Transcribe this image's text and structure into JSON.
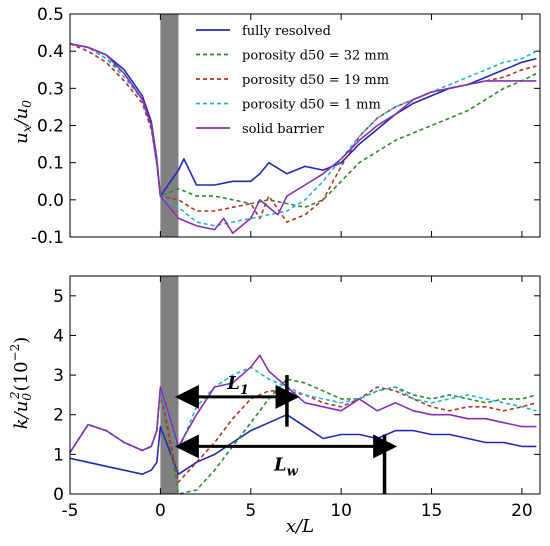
{
  "chart_data": [
    {
      "type": "line",
      "ylabel": "u_x/u_0",
      "xlim": [
        -5,
        21
      ],
      "ylim": [
        -0.1,
        0.5
      ],
      "xticks": [
        -5,
        0,
        5,
        10,
        15,
        20
      ],
      "yticks": [
        "-0.1",
        "0.0",
        "0.1",
        "0.2",
        "0.3",
        "0.4",
        "0.5"
      ],
      "barrier_span": [
        0,
        1
      ],
      "legend_position": "top-center",
      "series": [
        {
          "name": "fully resolved",
          "color": "#1f2ab8",
          "style": "solid",
          "x": [
            -5,
            -4,
            -3,
            -2,
            -1,
            -0.5,
            -0.2,
            0,
            1,
            1.3,
            2,
            3,
            4,
            5,
            5.5,
            6,
            7,
            8,
            9,
            10,
            11,
            12,
            13,
            14,
            15,
            16,
            17,
            18,
            19,
            20,
            20.8
          ],
          "y": [
            0.42,
            0.41,
            0.39,
            0.35,
            0.28,
            0.21,
            0.11,
            0.01,
            0.08,
            0.11,
            0.04,
            0.04,
            0.05,
            0.05,
            0.07,
            0.1,
            0.07,
            0.09,
            0.08,
            0.1,
            0.15,
            0.19,
            0.23,
            0.26,
            0.28,
            0.3,
            0.31,
            0.33,
            0.35,
            0.37,
            0.38
          ]
        },
        {
          "name": "porosity d_50 = 32 mm",
          "color": "#2e8b2e",
          "style": "dashed",
          "x": [
            -5,
            -4,
            -3,
            -2,
            -1,
            -0.5,
            -0.2,
            0,
            1,
            2,
            3,
            4,
            5,
            6,
            7,
            8,
            9,
            10,
            11,
            12,
            13,
            14,
            15,
            16,
            17,
            18,
            19,
            20,
            20.8
          ],
          "y": [
            0.42,
            0.41,
            0.38,
            0.34,
            0.27,
            0.2,
            0.1,
            0.01,
            0.03,
            0.01,
            0.01,
            0.0,
            -0.01,
            0.0,
            -0.01,
            -0.02,
            0.0,
            0.05,
            0.1,
            0.13,
            0.16,
            0.18,
            0.2,
            0.22,
            0.24,
            0.27,
            0.3,
            0.32,
            0.34
          ]
        },
        {
          "name": "porosity d_50 = 19 mm",
          "color": "#b8341e",
          "style": "dashed",
          "x": [
            -5,
            -4,
            -3,
            -2,
            -1,
            -0.5,
            -0.2,
            0,
            1,
            2,
            3,
            4,
            5,
            5.5,
            6,
            7,
            8,
            9,
            10,
            11,
            12,
            13,
            14,
            15,
            16,
            17,
            18,
            19,
            20,
            20.8
          ],
          "y": [
            0.42,
            0.4,
            0.37,
            0.32,
            0.26,
            0.19,
            0.1,
            0.01,
            0.0,
            -0.03,
            -0.03,
            -0.02,
            -0.01,
            -0.05,
            0.01,
            -0.06,
            -0.04,
            0.0,
            0.09,
            0.17,
            0.22,
            0.25,
            0.27,
            0.29,
            0.3,
            0.31,
            0.32,
            0.33,
            0.35,
            0.36
          ]
        },
        {
          "name": "porosity d_50 = 1 mm",
          "color": "#22b6d4",
          "style": "dashed",
          "x": [
            -5,
            -4,
            -3,
            -2,
            -1,
            -0.5,
            -0.2,
            0,
            1,
            2,
            3,
            4,
            5,
            6,
            7,
            8,
            9,
            10,
            11,
            12,
            13,
            14,
            15,
            16,
            17,
            18,
            19,
            20,
            20.8
          ],
          "y": [
            0.42,
            0.41,
            0.38,
            0.33,
            0.27,
            0.2,
            0.1,
            0.01,
            -0.02,
            -0.06,
            -0.07,
            -0.06,
            -0.05,
            -0.04,
            -0.03,
            0.0,
            0.05,
            0.11,
            0.17,
            0.22,
            0.25,
            0.27,
            0.29,
            0.31,
            0.33,
            0.35,
            0.37,
            0.38,
            0.4
          ]
        },
        {
          "name": "solid barrier",
          "color": "#8a2fb8",
          "style": "solid",
          "x": [
            -5,
            -4,
            -3,
            -2,
            -1,
            -0.5,
            -0.2,
            0,
            1,
            2,
            3,
            3.5,
            4,
            4.5,
            5,
            5.5,
            6,
            6.5,
            7,
            8,
            9,
            10,
            11,
            12,
            13,
            14,
            15,
            16,
            17,
            18,
            19,
            20,
            20.8
          ],
          "y": [
            0.42,
            0.41,
            0.39,
            0.34,
            0.27,
            0.2,
            0.1,
            0.01,
            -0.05,
            -0.07,
            -0.08,
            -0.05,
            -0.09,
            -0.07,
            -0.05,
            0.0,
            -0.02,
            -0.04,
            0.01,
            0.04,
            0.07,
            0.11,
            0.16,
            0.2,
            0.23,
            0.27,
            0.29,
            0.3,
            0.31,
            0.32,
            0.32,
            0.32,
            0.32
          ]
        }
      ]
    },
    {
      "type": "line",
      "xlabel": "x/L",
      "ylabel": "k/u_0^2 (10^-2)",
      "xlim": [
        -5,
        21
      ],
      "ylim": [
        0,
        5.5
      ],
      "xticks": [
        -5,
        0,
        5,
        10,
        15,
        20
      ],
      "yticks": [
        0,
        1,
        2,
        3,
        4,
        5
      ],
      "barrier_span": [
        0,
        1
      ],
      "series": [
        {
          "name": "fully resolved",
          "color": "#1f2ab8",
          "style": "solid",
          "x": [
            -5,
            -4,
            -3,
            -2,
            -1,
            -0.5,
            -0.2,
            0,
            1,
            2,
            3,
            4,
            5,
            6,
            7,
            8,
            9,
            10,
            11,
            12,
            13,
            14,
            15,
            16,
            17,
            18,
            19,
            20,
            20.8
          ],
          "y": [
            0.9,
            0.8,
            0.7,
            0.6,
            0.5,
            0.6,
            0.8,
            1.7,
            0.5,
            0.8,
            1.0,
            1.3,
            1.6,
            1.8,
            2.0,
            1.7,
            1.4,
            1.5,
            1.5,
            1.4,
            1.6,
            1.6,
            1.5,
            1.5,
            1.4,
            1.3,
            1.3,
            1.2,
            1.2
          ]
        },
        {
          "name": "porosity d_50 = 32 mm",
          "color": "#2e8b2e",
          "style": "dashed",
          "x": [
            -5,
            -4,
            -3,
            -2,
            -1,
            -0.5,
            -0.2,
            0,
            1,
            2,
            3,
            4,
            5,
            6,
            7,
            8,
            9,
            10,
            11,
            12,
            13,
            14,
            15,
            16,
            17,
            18,
            19,
            20,
            20.8
          ],
          "y": [
            1.05,
            1.75,
            1.6,
            1.3,
            1.1,
            1.2,
            1.6,
            2.6,
            0.0,
            0.1,
            0.6,
            1.2,
            1.8,
            2.4,
            2.9,
            2.8,
            2.6,
            2.4,
            2.4,
            2.6,
            2.7,
            2.5,
            2.4,
            2.5,
            2.4,
            2.3,
            2.4,
            2.4,
            2.5
          ]
        },
        {
          "name": "porosity d_50 = 19 mm",
          "color": "#b8341e",
          "style": "dashed",
          "x": [
            -5,
            -4,
            -3,
            -2,
            -1,
            -0.5,
            -0.2,
            0,
            1,
            2,
            3,
            4,
            5,
            6,
            7,
            8,
            9,
            10,
            11,
            12,
            13,
            14,
            15,
            16,
            17,
            18,
            19,
            20,
            20.8
          ],
          "y": [
            1.05,
            1.75,
            1.6,
            1.3,
            1.1,
            1.2,
            1.6,
            2.6,
            0.3,
            0.8,
            1.3,
            1.9,
            2.4,
            2.6,
            2.6,
            2.5,
            2.3,
            2.2,
            2.4,
            2.7,
            2.6,
            2.4,
            2.2,
            2.1,
            2.2,
            2.2,
            2.1,
            2.2,
            2.3
          ]
        },
        {
          "name": "porosity d_50 = 1 mm",
          "color": "#22b6d4",
          "style": "dashed",
          "x": [
            -5,
            -4,
            -3,
            -2,
            -1,
            -0.5,
            -0.2,
            0,
            1,
            2,
            3,
            4,
            5,
            6,
            7,
            8,
            9,
            10,
            11,
            12,
            13,
            14,
            15,
            16,
            17,
            18,
            19,
            20,
            20.8
          ],
          "y": [
            1.05,
            1.75,
            1.6,
            1.3,
            1.1,
            1.2,
            1.6,
            2.6,
            1.1,
            2.2,
            2.7,
            3.0,
            3.2,
            2.9,
            2.7,
            2.5,
            2.4,
            2.3,
            2.4,
            2.6,
            2.7,
            2.4,
            2.3,
            2.4,
            2.5,
            2.4,
            2.3,
            2.2,
            2.1
          ]
        },
        {
          "name": "solid barrier",
          "color": "#8a2fb8",
          "style": "solid",
          "x": [
            -5,
            -4,
            -3,
            -2,
            -1,
            -0.5,
            -0.2,
            0,
            1,
            2,
            3,
            4,
            5,
            5.5,
            6,
            7,
            8,
            9,
            10,
            11,
            12,
            13,
            14,
            15,
            16,
            17,
            18,
            19,
            20,
            20.8
          ],
          "y": [
            1.05,
            1.75,
            1.6,
            1.3,
            1.1,
            1.2,
            1.6,
            2.7,
            1.2,
            2.0,
            2.7,
            2.8,
            3.2,
            3.5,
            3.1,
            2.7,
            2.3,
            2.2,
            2.1,
            2.4,
            2.1,
            2.3,
            2.1,
            2.0,
            2.0,
            1.9,
            1.9,
            1.8,
            1.7,
            1.7
          ]
        }
      ],
      "annotations": [
        {
          "label": "L_1",
          "arrow_from": 1.3,
          "arrow_to": 7.2,
          "arrow_y": 2.45,
          "bar_x": 7.0,
          "bar_range": [
            1.7,
            3.0
          ]
        },
        {
          "label": "L_w",
          "arrow_from": 1.3,
          "arrow_to": 12.6,
          "arrow_y": 1.2,
          "bar_x": 12.4,
          "bar_range": [
            0.0,
            1.5
          ]
        }
      ]
    }
  ],
  "legend": {
    "items": [
      {
        "label_text": "fully resolved",
        "color": "#1f2ab8",
        "dashed": false
      },
      {
        "label_text": "porosity d50 = 32 mm",
        "color": "#2e8b2e",
        "dashed": true
      },
      {
        "label_text": "porosity d50 = 19 mm",
        "color": "#b8341e",
        "dashed": true
      },
      {
        "label_text": "porosity d50 = 1 mm",
        "color": "#22b6d4",
        "dashed": true
      },
      {
        "label_text": "solid barrier",
        "color": "#8a2fb8",
        "dashed": false
      }
    ]
  },
  "labels": {
    "top_ylabel_num": "u",
    "top_ylabel_num_sub": "x",
    "top_ylabel_den": "u",
    "top_ylabel_den_sub": "0",
    "bottom_ylabel_num": "k",
    "bottom_ylabel_den": "u",
    "bottom_ylabel_den_sub": "0",
    "bottom_ylabel_den_sup": "2",
    "bottom_ylabel_scale": "(10",
    "bottom_ylabel_scale_sup": "−2",
    "bottom_ylabel_scale_close": ")",
    "xlabel": "x/L",
    "annot_L1_main": "L",
    "annot_L1_sub": "1",
    "annot_Lw_main": "L",
    "annot_Lw_sub": "w"
  },
  "colors": {
    "barrier": "#808080",
    "frame": "#000000"
  }
}
